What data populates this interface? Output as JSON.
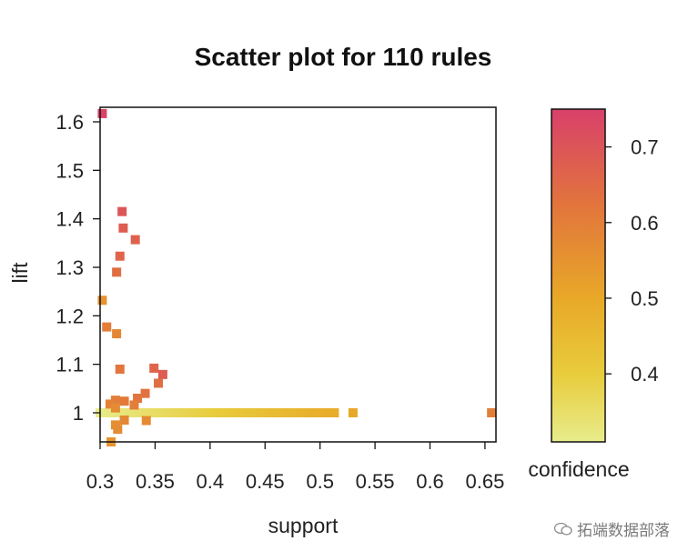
{
  "chart_data": {
    "type": "scatter",
    "title": "Scatter plot for 110 rules",
    "xlabel": "support",
    "ylabel": "lift",
    "xlim": [
      0.3,
      0.66
    ],
    "ylim": [
      0.94,
      1.63
    ],
    "xticks": [
      0.3,
      0.35,
      0.4,
      0.45,
      0.5,
      0.55,
      0.6,
      0.65
    ],
    "yticks": [
      1,
      1.1,
      1.2,
      1.3,
      1.4,
      1.5,
      1.6
    ],
    "color_scale": {
      "label": "confidence",
      "range": [
        0.31,
        0.75
      ],
      "ticks": [
        0.4,
        0.5,
        0.6,
        0.7
      ],
      "stops": [
        {
          "value": 0.31,
          "color": "#e8ec8c"
        },
        {
          "value": 0.4,
          "color": "#e8cc3c"
        },
        {
          "value": 0.5,
          "color": "#e8a828"
        },
        {
          "value": 0.62,
          "color": "#e2763c"
        },
        {
          "value": 0.75,
          "color": "#d8406a"
        }
      ]
    },
    "points": [
      {
        "x": 0.302,
        "y": 1.617,
        "c": 0.74
      },
      {
        "x": 0.32,
        "y": 1.415,
        "c": 0.7
      },
      {
        "x": 0.321,
        "y": 1.381,
        "c": 0.68
      },
      {
        "x": 0.332,
        "y": 1.357,
        "c": 0.67
      },
      {
        "x": 0.318,
        "y": 1.323,
        "c": 0.66
      },
      {
        "x": 0.315,
        "y": 1.29,
        "c": 0.64
      },
      {
        "x": 0.302,
        "y": 1.232,
        "c": 0.55
      },
      {
        "x": 0.306,
        "y": 1.177,
        "c": 0.6
      },
      {
        "x": 0.315,
        "y": 1.163,
        "c": 0.58
      },
      {
        "x": 0.318,
        "y": 1.09,
        "c": 0.62
      },
      {
        "x": 0.349,
        "y": 1.092,
        "c": 0.66
      },
      {
        "x": 0.357,
        "y": 1.079,
        "c": 0.68
      },
      {
        "x": 0.353,
        "y": 1.061,
        "c": 0.64
      },
      {
        "x": 0.341,
        "y": 1.04,
        "c": 0.63
      },
      {
        "x": 0.334,
        "y": 1.03,
        "c": 0.62
      },
      {
        "x": 0.322,
        "y": 1.024,
        "c": 0.61
      },
      {
        "x": 0.314,
        "y": 1.026,
        "c": 0.6
      },
      {
        "x": 0.309,
        "y": 1.018,
        "c": 0.59
      },
      {
        "x": 0.331,
        "y": 1.016,
        "c": 0.6
      },
      {
        "x": 0.314,
        "y": 1.01,
        "c": 0.57
      },
      {
        "x": 0.322,
        "y": 0.985,
        "c": 0.58
      },
      {
        "x": 0.342,
        "y": 0.984,
        "c": 0.57
      },
      {
        "x": 0.314,
        "y": 0.975,
        "c": 0.56
      },
      {
        "x": 0.316,
        "y": 0.966,
        "c": 0.57
      },
      {
        "x": 0.31,
        "y": 0.94,
        "c": 0.55
      },
      {
        "x": 0.53,
        "y": 1.0,
        "c": 0.5
      },
      {
        "x": 0.656,
        "y": 1.0,
        "c": 0.6
      }
    ],
    "band": {
      "y": 1.0,
      "x_from": 0.3,
      "x_to": 0.513,
      "n": 83,
      "c_from": 0.31,
      "c_to": 0.49
    }
  },
  "watermark": {
    "text": "拓端数据部落"
  }
}
